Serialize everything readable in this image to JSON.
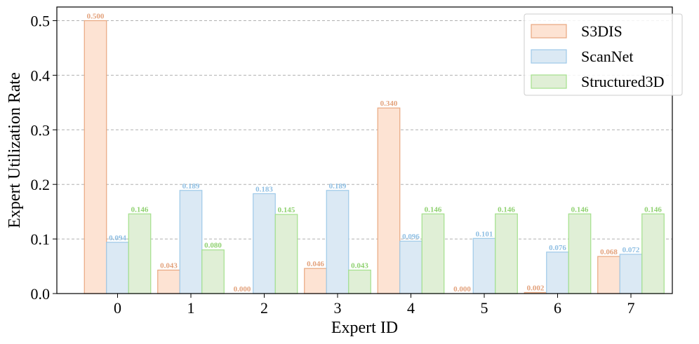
{
  "chart_data": {
    "type": "bar",
    "xlabel": "Expert ID",
    "ylabel": "Expert Utilization Rate",
    "categories": [
      "0",
      "1",
      "2",
      "3",
      "4",
      "5",
      "6",
      "7"
    ],
    "ylim": [
      0,
      0.525
    ],
    "yticks": [
      "0.0",
      "0.1",
      "0.2",
      "0.3",
      "0.4",
      "0.5"
    ],
    "grid": "horizontal dashed",
    "legend_position": "top-right",
    "series": [
      {
        "name": "S3DIS",
        "values": [
          0.5,
          0.043,
          0.0,
          0.046,
          0.34,
          0.0,
          0.002,
          0.068
        ],
        "labels": [
          "0.500",
          "0.043",
          "0.000",
          "0.046",
          "0.340",
          "0.000",
          "0.002",
          "0.068"
        ],
        "fill": "#fde3d3",
        "stroke": "#e8a77f",
        "label_color": "#e3a27c"
      },
      {
        "name": "ScanNet",
        "values": [
          0.094,
          0.189,
          0.183,
          0.189,
          0.096,
          0.101,
          0.076,
          0.072
        ],
        "labels": [
          "0.094",
          "0.189",
          "0.183",
          "0.189",
          "0.096",
          "0.101",
          "0.076",
          "0.072"
        ],
        "fill": "#dbe9f4",
        "stroke": "#9ec9e8",
        "label_color": "#8fbfe3"
      },
      {
        "name": "Structured3D",
        "values": [
          0.146,
          0.08,
          0.145,
          0.043,
          0.146,
          0.146,
          0.146,
          0.146
        ],
        "labels": [
          "0.146",
          "0.080",
          "0.145",
          "0.043",
          "0.146",
          "0.146",
          "0.146",
          "0.146"
        ],
        "fill": "#e0efd6",
        "stroke": "#a3e08b",
        "label_color": "#8fd170"
      }
    ]
  }
}
